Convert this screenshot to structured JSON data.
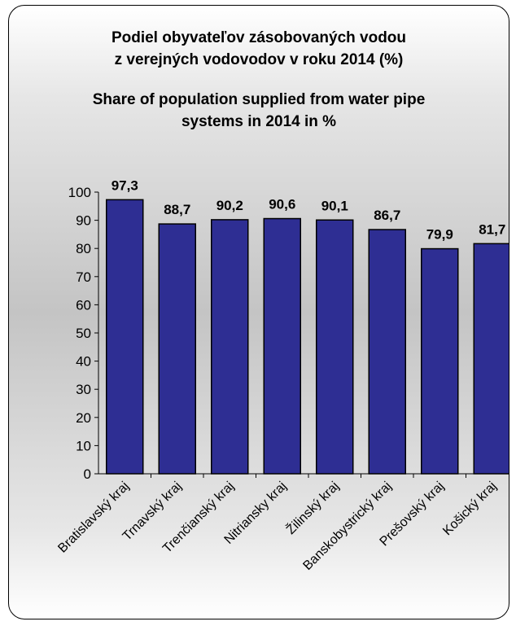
{
  "chart_data": {
    "type": "bar",
    "title": "Podiel obyvateľov zásobovaných vodou z verejných vodovodov v roku 2014 (%)",
    "title_lines": [
      "Podiel obyvateľov zásobovaných vodou",
      "z verejných vodovodov v roku 2014 (%)"
    ],
    "subtitle_lines": [
      "Share of population supplied from water pipe",
      "systems in 2014  in %"
    ],
    "categories": [
      "Bratislavský kraj",
      "Trnavský kraj",
      "Trenčianský kraj",
      "Nitriansky kraj",
      "Žilinský kraj",
      "Banskobystrický kraj",
      "Prešovský kraj",
      "Košický kraj"
    ],
    "values": [
      97.3,
      88.7,
      90.2,
      90.6,
      90.1,
      86.7,
      79.9,
      81.7
    ],
    "data_labels": [
      "97,3",
      "88,7",
      "90,2",
      "90,6",
      "90,1",
      "86,7",
      "79,9",
      "81,7"
    ],
    "ylim": [
      0,
      100
    ],
    "yticks": [
      0,
      10,
      20,
      30,
      40,
      50,
      60,
      70,
      80,
      90,
      100
    ],
    "xlabel": "",
    "ylabel": "",
    "grid": false,
    "legend": "none",
    "bar_color": "#2e2e93",
    "bar_edge_color": "#000000"
  }
}
